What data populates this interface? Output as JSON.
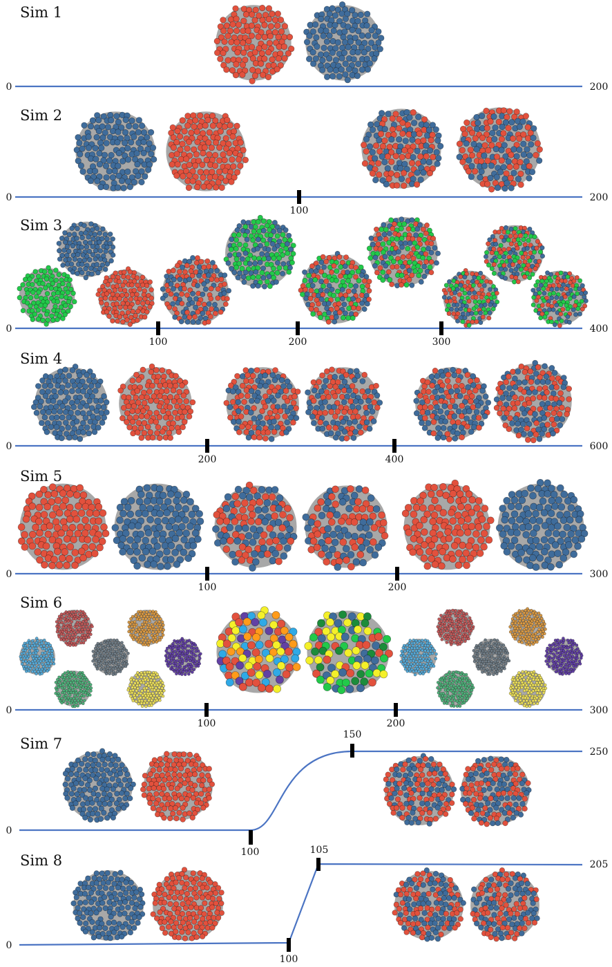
{
  "colors": {
    "blue": "#3f6c9b",
    "red": "#e2513d",
    "green": "#22c94a",
    "purple": "#6241a4",
    "orange": "#ff9b1a",
    "cyan": "#2fa9e6",
    "yellow": "#f4f02a",
    "darkgreen": "#1c8c3a",
    "slate": "#6f7c86",
    "mutedred": "#c0595a",
    "tan": "#d99a46",
    "seafoam": "#4fb07a",
    "sky": "#57a9d6",
    "gold": "#e8dc5d",
    "timeline": "#4b74c3",
    "halo": "#a8a8a8"
  },
  "simulations": [
    {
      "title": "Sim 1",
      "start_label": "0",
      "end_label": "200",
      "ticks": [],
      "clusters": [
        {
          "colors": [
            "red"
          ]
        },
        {
          "colors": [
            "blue"
          ]
        }
      ]
    },
    {
      "title": "Sim 2",
      "start_label": "0",
      "end_label": "200",
      "ticks": [
        "100"
      ],
      "clusters": [
        {
          "colors": [
            "blue"
          ]
        },
        {
          "colors": [
            "red"
          ]
        },
        {
          "colors": [
            "red",
            "blue"
          ]
        },
        {
          "colors": [
            "blue",
            "red"
          ]
        }
      ]
    },
    {
      "title": "Sim 3",
      "start_label": "0",
      "end_label": "400",
      "ticks": [
        "100",
        "200",
        "300"
      ],
      "clusters": [
        {
          "colors": [
            "blue"
          ]
        },
        {
          "colors": [
            "green"
          ]
        },
        {
          "colors": [
            "red"
          ]
        },
        {
          "colors": [
            "red",
            "blue"
          ]
        },
        {
          "colors": [
            "green",
            "blue"
          ]
        },
        {
          "colors": [
            "red",
            "green",
            "blue"
          ]
        },
        {
          "colors": [
            "green",
            "red",
            "blue"
          ]
        },
        {
          "colors": [
            "red",
            "green",
            "blue"
          ]
        },
        {
          "colors": [
            "green",
            "red",
            "blue"
          ]
        },
        {
          "colors": [
            "blue",
            "green",
            "red"
          ]
        }
      ]
    },
    {
      "title": "Sim 4",
      "start_label": "0",
      "end_label": "600",
      "ticks": [
        "200",
        "400"
      ],
      "clusters": [
        {
          "colors": [
            "blue"
          ]
        },
        {
          "colors": [
            "red"
          ]
        },
        {
          "colors": [
            "red",
            "blue"
          ]
        },
        {
          "colors": [
            "blue",
            "red"
          ]
        },
        {
          "colors": [
            "blue",
            "red"
          ]
        },
        {
          "colors": [
            "red",
            "blue"
          ]
        }
      ]
    },
    {
      "title": "Sim 5",
      "start_label": "0",
      "end_label": "300",
      "ticks": [
        "100",
        "200"
      ],
      "clusters": [
        {
          "colors": [
            "red"
          ]
        },
        {
          "colors": [
            "blue"
          ]
        },
        {
          "colors": [
            "blue",
            "red"
          ]
        },
        {
          "colors": [
            "red",
            "blue"
          ]
        },
        {
          "colors": [
            "red"
          ]
        },
        {
          "colors": [
            "blue"
          ]
        }
      ]
    },
    {
      "title": "Sim 6",
      "start_label": "0",
      "end_label": "300",
      "ticks": [
        "100",
        "200"
      ],
      "clusters": [
        {
          "colors": [
            "mutedred"
          ]
        },
        {
          "colors": [
            "tan"
          ]
        },
        {
          "colors": [
            "sky"
          ]
        },
        {
          "colors": [
            "slate"
          ]
        },
        {
          "colors": [
            "purple"
          ]
        },
        {
          "colors": [
            "seafoam"
          ]
        },
        {
          "colors": [
            "gold"
          ]
        },
        {
          "colors": [
            "purple",
            "orange",
            "cyan",
            "yellow",
            "red"
          ]
        },
        {
          "colors": [
            "green",
            "red",
            "yellow",
            "darkgreen",
            "blue"
          ]
        },
        {
          "colors": [
            "mutedred"
          ]
        },
        {
          "colors": [
            "tan"
          ]
        },
        {
          "colors": [
            "sky"
          ]
        },
        {
          "colors": [
            "slate"
          ]
        },
        {
          "colors": [
            "purple"
          ]
        },
        {
          "colors": [
            "seafoam"
          ]
        },
        {
          "colors": [
            "gold"
          ]
        }
      ]
    },
    {
      "title": "Sim 7",
      "start_label": "0",
      "end_label": "250",
      "ticks": [
        "100",
        "150"
      ],
      "clusters": [
        {
          "colors": [
            "blue"
          ]
        },
        {
          "colors": [
            "red"
          ]
        },
        {
          "colors": [
            "red",
            "blue"
          ]
        },
        {
          "colors": [
            "blue",
            "red"
          ]
        }
      ]
    },
    {
      "title": "Sim 8",
      "start_label": "0",
      "end_label": "205",
      "ticks": [
        "100",
        "105"
      ],
      "clusters": [
        {
          "colors": [
            "blue"
          ]
        },
        {
          "colors": [
            "red"
          ]
        },
        {
          "colors": [
            "red",
            "blue"
          ]
        },
        {
          "colors": [
            "blue",
            "red"
          ]
        }
      ]
    }
  ]
}
